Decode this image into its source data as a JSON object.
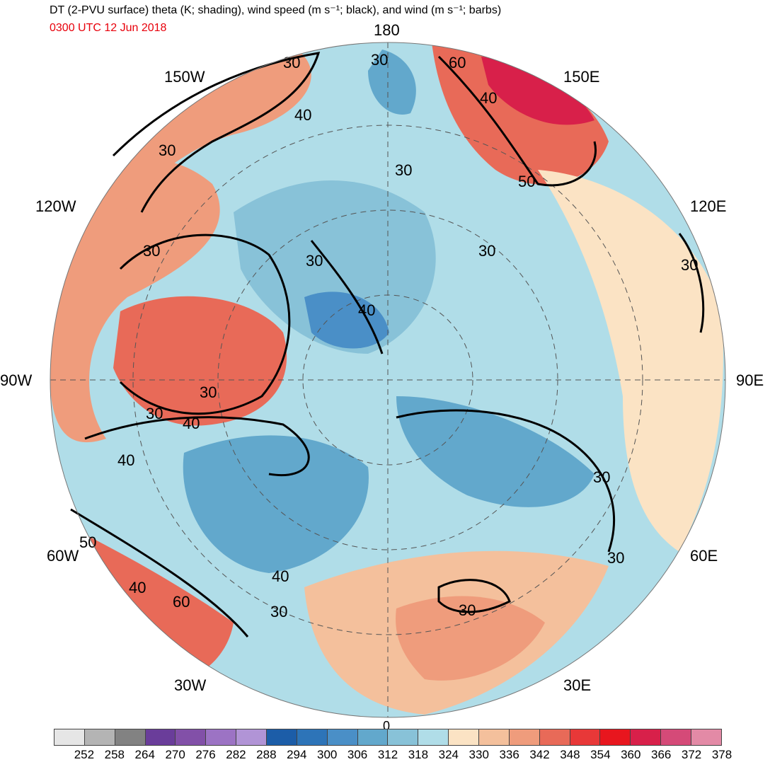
{
  "title": "DT (2-PVU surface) theta (K; shading), wind speed (m s⁻¹; black), and wind (m s⁻¹; barbs)",
  "valid_time": "0300 UTC 12 Jun 2018",
  "colors": {
    "time_text": "#e8000b",
    "ocean_base": "#b2dde8"
  },
  "longitude_labels": {
    "lon_180": "180",
    "lon_150w": "150W",
    "lon_150e": "150E",
    "lon_120w": "120W",
    "lon_120e": "120E",
    "lon_90w": "90W",
    "lon_90e": "90E",
    "lon_60w": "60W",
    "lon_60e": "60E",
    "lon_30w": "30W",
    "lon_30e": "30E",
    "lon_0": "0"
  },
  "contour_labels": [
    "30",
    "40",
    "50",
    "60"
  ],
  "colorbar": {
    "tick_labels": [
      "252",
      "258",
      "264",
      "270",
      "276",
      "282",
      "288",
      "294",
      "300",
      "306",
      "312",
      "318",
      "324",
      "330",
      "336",
      "342",
      "348",
      "354",
      "360",
      "366",
      "372",
      "378"
    ],
    "colors": [
      "#e6e6e6",
      "#b4b4b4",
      "#828282",
      "#6a3d9a",
      "#8250a8",
      "#9c73c4",
      "#b194d6",
      "#1c5da8",
      "#2d74b8",
      "#4a8fc7",
      "#62a8cc",
      "#88c2d8",
      "#b0dde8",
      "#fbe3c4",
      "#f4c09c",
      "#ef9c7c",
      "#e86a58",
      "#e83838",
      "#e8161e",
      "#d8204a",
      "#d54a78",
      "#e38aa6"
    ]
  }
}
